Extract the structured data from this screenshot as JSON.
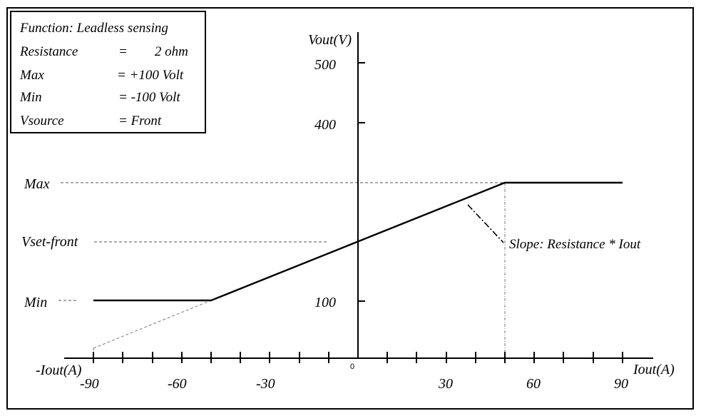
{
  "info_box": {
    "title": "Function: Leadless sensing",
    "rows": [
      {
        "label": "Resistance",
        "value": "=        2 ohm"
      },
      {
        "label": "Max",
        "value": "= +100 Volt"
      },
      {
        "label": "Min",
        "value": "= -100 Volt"
      },
      {
        "label": "Vsource",
        "value": "= Front"
      }
    ]
  },
  "axes": {
    "y_label": "Vout(V)",
    "x_label_right": "Iout(A)",
    "x_label_left": "-Iout(A)",
    "origin_label": "0",
    "y_ticks": [
      {
        "value": 500,
        "label": "500"
      },
      {
        "value": 400,
        "label": "400"
      },
      {
        "value": 100,
        "label": "100"
      }
    ],
    "x_tick_labels": [
      {
        "value": -90,
        "label": "-90"
      },
      {
        "value": -60,
        "label": "-60"
      },
      {
        "value": -30,
        "label": "-30"
      },
      {
        "value": 30,
        "label": "30"
      },
      {
        "value": 60,
        "label": "60"
      },
      {
        "value": 90,
        "label": "90"
      }
    ]
  },
  "levels": {
    "max_label": "Max",
    "vset_label": "Vset-front",
    "min_label": "Min"
  },
  "annotation": "Slope: Resistance * Iout"
}
